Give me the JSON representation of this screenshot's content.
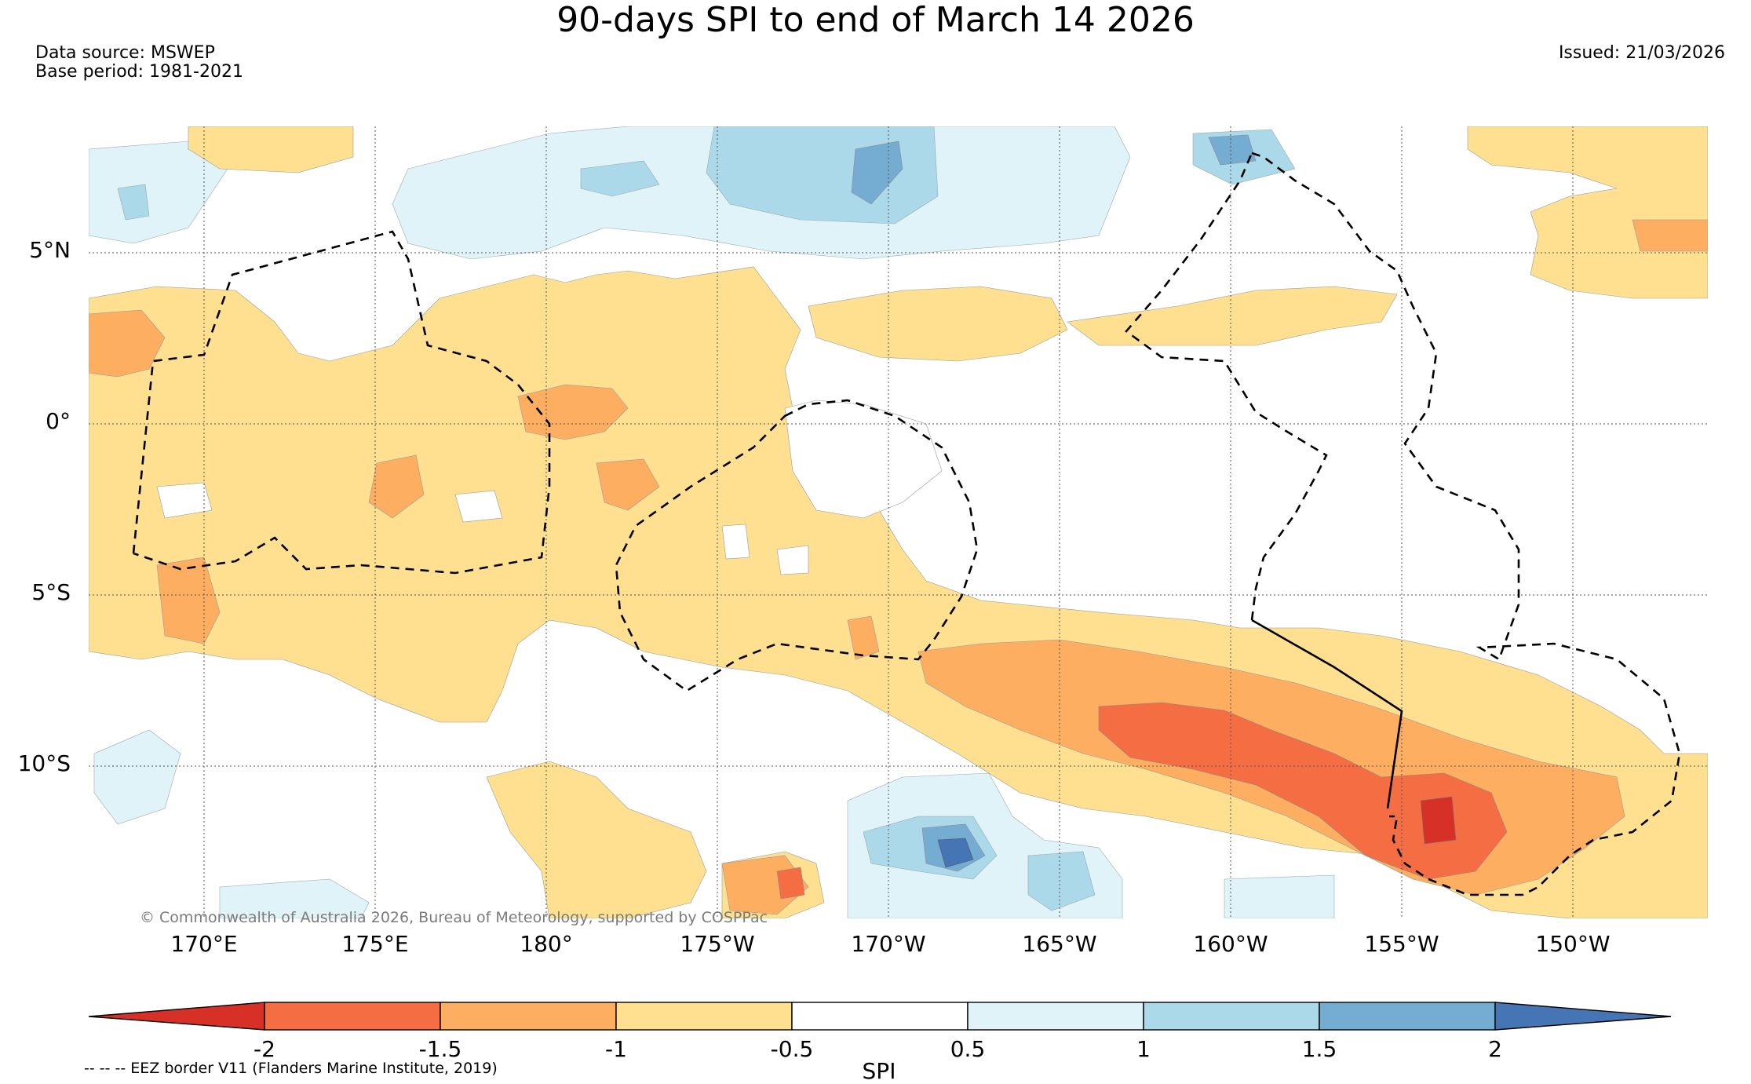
{
  "title": "90-days SPI to end of March 14 2026",
  "data_source": "Data source: MSWEP",
  "base_period": "Base period: 1981-2021",
  "issued": "Issued: 21/03/2026",
  "copyright": "© Commonwealth of Australia 2026, Bureau of Meteorology, supported by COSPPac",
  "eez_note": "-- -- -- EEZ border V11 (Flanders Marine Institute, 2019)",
  "lat_labels": [
    "5°N",
    "0°",
    "5°S",
    "10°S"
  ],
  "lon_labels": [
    "170°E",
    "175°E",
    "180°",
    "175°W",
    "170°W",
    "165°W",
    "160°W",
    "155°W",
    "150°W"
  ],
  "colorbar": {
    "title": "SPI",
    "ticks": [
      "-2",
      "-1.5",
      "-1",
      "-0.5",
      "0.5",
      "1",
      "1.5",
      "2"
    ],
    "colors": [
      "#d73027",
      "#f46d43",
      "#fdae61",
      "#fee090",
      "#ffffff",
      "#e0f3f8",
      "#abd9e9",
      "#74add1",
      "#4575b4"
    ]
  }
}
